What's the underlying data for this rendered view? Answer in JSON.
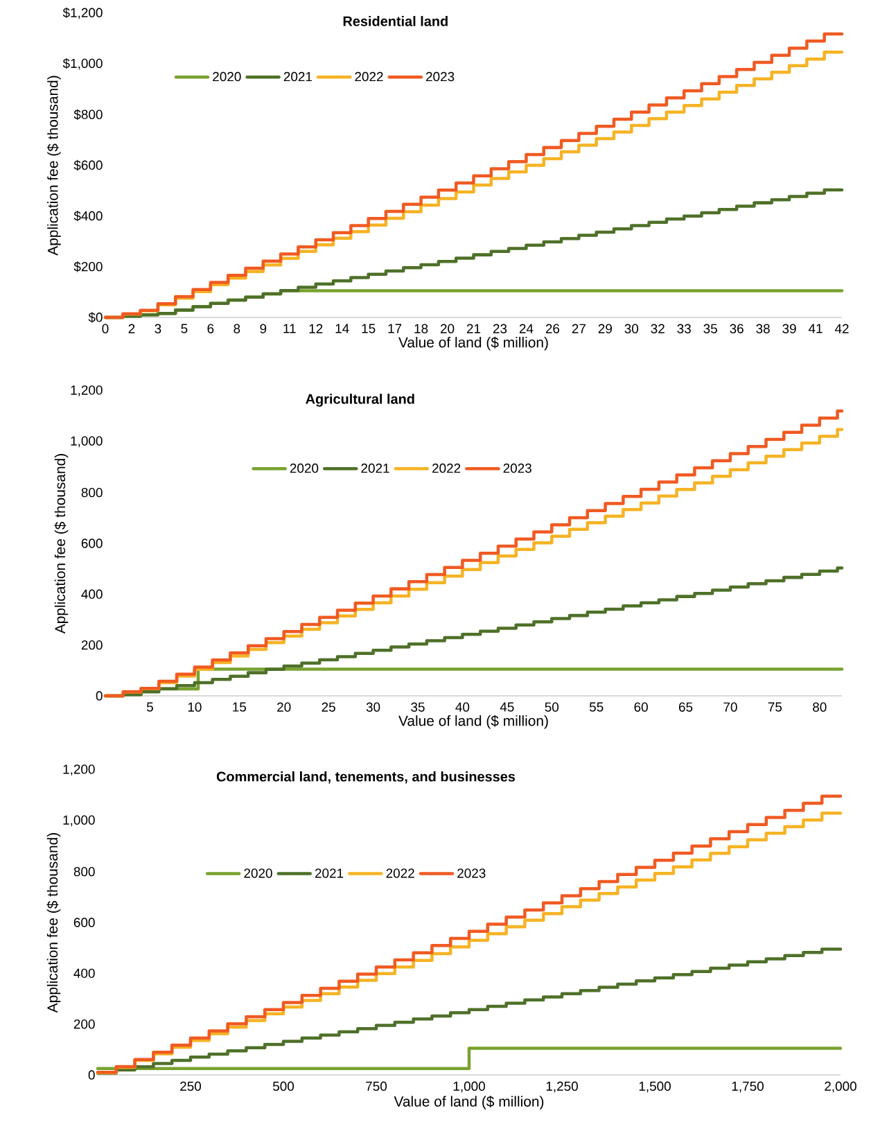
{
  "chart_data": [
    {
      "type": "step",
      "title": "Residential land",
      "xlabel": "Value of land ($ million)",
      "ylabel": "Application fee ($ thousand)",
      "legend": "top",
      "xlim": [
        0,
        42
      ],
      "ylim": [
        0,
        1200
      ],
      "xticks": [
        0,
        {
          "value": 1.5,
          "label": "2"
        },
        3,
        {
          "value": 4.5,
          "label": "5"
        },
        6,
        {
          "value": 7.5,
          "label": "8"
        },
        9,
        {
          "value": 10.5,
          "label": "11"
        },
        12,
        {
          "value": 13.5,
          "label": "14"
        },
        15,
        {
          "value": 16.5,
          "label": "17"
        },
        18,
        {
          "value": 19.5,
          "label": "20"
        },
        21,
        {
          "value": 22.5,
          "label": "23"
        },
        24,
        {
          "value": 25.5,
          "label": "26"
        },
        27,
        {
          "value": 28.5,
          "label": "29"
        },
        30,
        {
          "value": 31.5,
          "label": "32"
        },
        33,
        {
          "value": 34.5,
          "label": "35"
        },
        36,
        {
          "value": 37.5,
          "label": "38"
        },
        39,
        {
          "value": 40.5,
          "label": "41"
        },
        42
      ],
      "yticks": [
        {
          "value": 0,
          "label": "$0"
        },
        {
          "value": 200,
          "label": "$200"
        },
        {
          "value": 400,
          "label": "$400"
        },
        {
          "value": 600,
          "label": "$600"
        },
        {
          "value": 800,
          "label": "$800"
        },
        {
          "value": 1000,
          "label": "$1,000"
        },
        {
          "value": 1200,
          "label": "$1,200"
        }
      ],
      "x": [
        0,
        1,
        2,
        3,
        4,
        5,
        6,
        7,
        8,
        9,
        10,
        11,
        12,
        13,
        14,
        15,
        16,
        17,
        18,
        19,
        20,
        21,
        22,
        23,
        24,
        25,
        26,
        27,
        28,
        29,
        30,
        31,
        32,
        33,
        34,
        35,
        36,
        37,
        38,
        39,
        40,
        41,
        42
      ],
      "series": [
        {
          "name": "2020",
          "color": "#78a22f",
          "x": [
            0,
            1,
            2,
            3,
            4,
            5,
            6,
            7,
            8,
            9,
            10,
            42
          ],
          "values": [
            0,
            5,
            10,
            16,
            29,
            42,
            55,
            68,
            80,
            93,
            105,
            105
          ]
        },
        {
          "name": "2021",
          "color": "#4e7028",
          "values": [
            0,
            5,
            10,
            16,
            29,
            42,
            55,
            68,
            80,
            93,
            106,
            119,
            132,
            144,
            157,
            170,
            183,
            196,
            208,
            221,
            234,
            247,
            260,
            272,
            285,
            298,
            311,
            324,
            336,
            349,
            362,
            375,
            388,
            400,
            413,
            426,
            439,
            452,
            464,
            477,
            490,
            503,
            503
          ]
        },
        {
          "name": "2022",
          "color": "#f5b324",
          "values": [
            0,
            13,
            26,
            50,
            76,
            102,
            129,
            155,
            181,
            207,
            233,
            260,
            286,
            312,
            338,
            364,
            391,
            417,
            443,
            469,
            495,
            522,
            548,
            574,
            600,
            626,
            653,
            679,
            705,
            731,
            757,
            784,
            810,
            836,
            862,
            888,
            915,
            941,
            967,
            993,
            1019,
            1046,
            1046
          ]
        },
        {
          "name": "2023",
          "color": "#f05a22",
          "values": [
            0,
            14,
            28,
            54,
            82,
            110,
            138,
            166,
            194,
            222,
            250,
            278,
            306,
            334,
            362,
            390,
            418,
            446,
            474,
            502,
            530,
            558,
            586,
            614,
            642,
            670,
            698,
            726,
            754,
            782,
            810,
            838,
            866,
            894,
            922,
            950,
            978,
            1006,
            1034,
            1062,
            1090,
            1118,
            1118
          ]
        }
      ]
    },
    {
      "type": "step",
      "title": "Agricultural land",
      "xlabel": "Value of land ($ million)",
      "ylabel": "Application fee ($ thousand)",
      "legend": "top",
      "xlim": [
        0,
        82.5
      ],
      "ylim": [
        0,
        1200
      ],
      "xticks": [
        5,
        10,
        15,
        20,
        25,
        30,
        35,
        40,
        45,
        50,
        55,
        60,
        65,
        70,
        75,
        80
      ],
      "yticks": [
        0,
        200,
        400,
        600,
        800,
        {
          "value": 1000,
          "label": "1,000"
        },
        {
          "value": 1200,
          "label": "1,200"
        }
      ],
      "x": [
        0,
        2,
        4,
        6,
        8,
        10,
        12,
        14,
        16,
        18,
        20,
        22,
        24,
        26,
        28,
        30,
        32,
        34,
        36,
        38,
        40,
        42,
        44,
        46,
        48,
        50,
        52,
        54,
        56,
        58,
        60,
        62,
        64,
        66,
        68,
        70,
        72,
        74,
        76,
        78,
        80,
        82,
        82.5
      ],
      "series": [
        {
          "name": "2020",
          "color": "#78a22f",
          "x": [
            0,
            2,
            4,
            10.4,
            82.5
          ],
          "values": [
            0,
            5,
            27,
            105,
            105
          ]
        },
        {
          "name": "2021",
          "color": "#4e7028",
          "values": [
            0,
            5,
            16,
            28,
            40,
            52,
            65,
            77,
            91,
            104,
            117,
            129,
            142,
            154,
            167,
            179,
            192,
            204,
            217,
            229,
            242,
            254,
            266,
            279,
            291,
            304,
            316,
            329,
            341,
            354,
            366,
            378,
            391,
            403,
            416,
            428,
            441,
            453,
            466,
            478,
            491,
            503,
            503
          ]
        },
        {
          "name": "2022",
          "color": "#f5b324",
          "values": [
            0,
            15,
            28,
            52,
            78,
            104,
            131,
            157,
            183,
            209,
            235,
            262,
            288,
            314,
            340,
            366,
            393,
            419,
            445,
            471,
            497,
            524,
            550,
            576,
            602,
            628,
            655,
            681,
            707,
            733,
            759,
            786,
            812,
            838,
            864,
            890,
            917,
            943,
            969,
            995,
            1021,
            1048,
            1048
          ]
        },
        {
          "name": "2023",
          "color": "#f05a22",
          "values": [
            0,
            16,
            29,
            57,
            85,
            113,
            141,
            169,
            197,
            225,
            253,
            281,
            309,
            337,
            365,
            393,
            421,
            449,
            477,
            505,
            533,
            561,
            589,
            617,
            645,
            673,
            701,
            729,
            757,
            785,
            813,
            841,
            869,
            897,
            925,
            953,
            981,
            1009,
            1037,
            1065,
            1093,
            1121,
            1121
          ]
        }
      ]
    },
    {
      "type": "step",
      "title": "Commercial land, tenements, and businesses",
      "xlabel": "Value of land ($ million)",
      "ylabel": "Application fee ($ thousand)",
      "legend": "top",
      "xlim": [
        0,
        2000
      ],
      "ylim": [
        0,
        1200
      ],
      "xticks": [
        250,
        500,
        750,
        {
          "value": 1000,
          "label": "1,000"
        },
        {
          "value": 1250,
          "label": "1,250"
        },
        {
          "value": 1500,
          "label": "1,500"
        },
        {
          "value": 1750,
          "label": "1,750"
        },
        {
          "value": 2000,
          "label": "2,000"
        }
      ],
      "yticks": [
        0,
        200,
        400,
        600,
        800,
        {
          "value": 1000,
          "label": "1,000"
        },
        {
          "value": 1200,
          "label": "1,200"
        }
      ],
      "x": [
        0,
        50,
        100,
        150,
        200,
        250,
        300,
        350,
        400,
        450,
        500,
        550,
        600,
        650,
        700,
        750,
        800,
        850,
        900,
        950,
        1000,
        1050,
        1100,
        1150,
        1200,
        1250,
        1300,
        1350,
        1400,
        1450,
        1500,
        1550,
        1600,
        1650,
        1700,
        1750,
        1800,
        1850,
        1900,
        1950,
        2000
      ],
      "series": [
        {
          "name": "2020",
          "color": "#78a22f",
          "x": [
            0,
            1000,
            2000
          ],
          "values": [
            25,
            105,
            105
          ]
        },
        {
          "name": "2021",
          "color": "#4e7028",
          "values": [
            7,
            20,
            32,
            45,
            57,
            70,
            82,
            95,
            107,
            120,
            132,
            145,
            157,
            170,
            182,
            195,
            207,
            220,
            232,
            245,
            257,
            270,
            282,
            295,
            307,
            320,
            332,
            345,
            357,
            370,
            382,
            395,
            407,
            420,
            432,
            445,
            457,
            470,
            482,
            495,
            495
          ]
        },
        {
          "name": "2022",
          "color": "#f5b324",
          "values": [
            8,
            30,
            57,
            83,
            109,
            136,
            162,
            188,
            214,
            241,
            267,
            293,
            320,
            346,
            372,
            399,
            425,
            451,
            477,
            504,
            530,
            556,
            583,
            609,
            635,
            662,
            688,
            714,
            740,
            767,
            793,
            819,
            846,
            872,
            898,
            925,
            951,
            977,
            1003,
            1030,
            1030
          ]
        },
        {
          "name": "2023",
          "color": "#f05a22",
          "values": [
            10,
            33,
            61,
            89,
            117,
            145,
            173,
            201,
            229,
            257,
            285,
            313,
            341,
            369,
            397,
            425,
            453,
            481,
            509,
            537,
            565,
            593,
            621,
            649,
            677,
            705,
            733,
            761,
            789,
            817,
            845,
            873,
            901,
            929,
            957,
            985,
            1013,
            1041,
            1069,
            1097,
            1097
          ]
        }
      ]
    }
  ]
}
